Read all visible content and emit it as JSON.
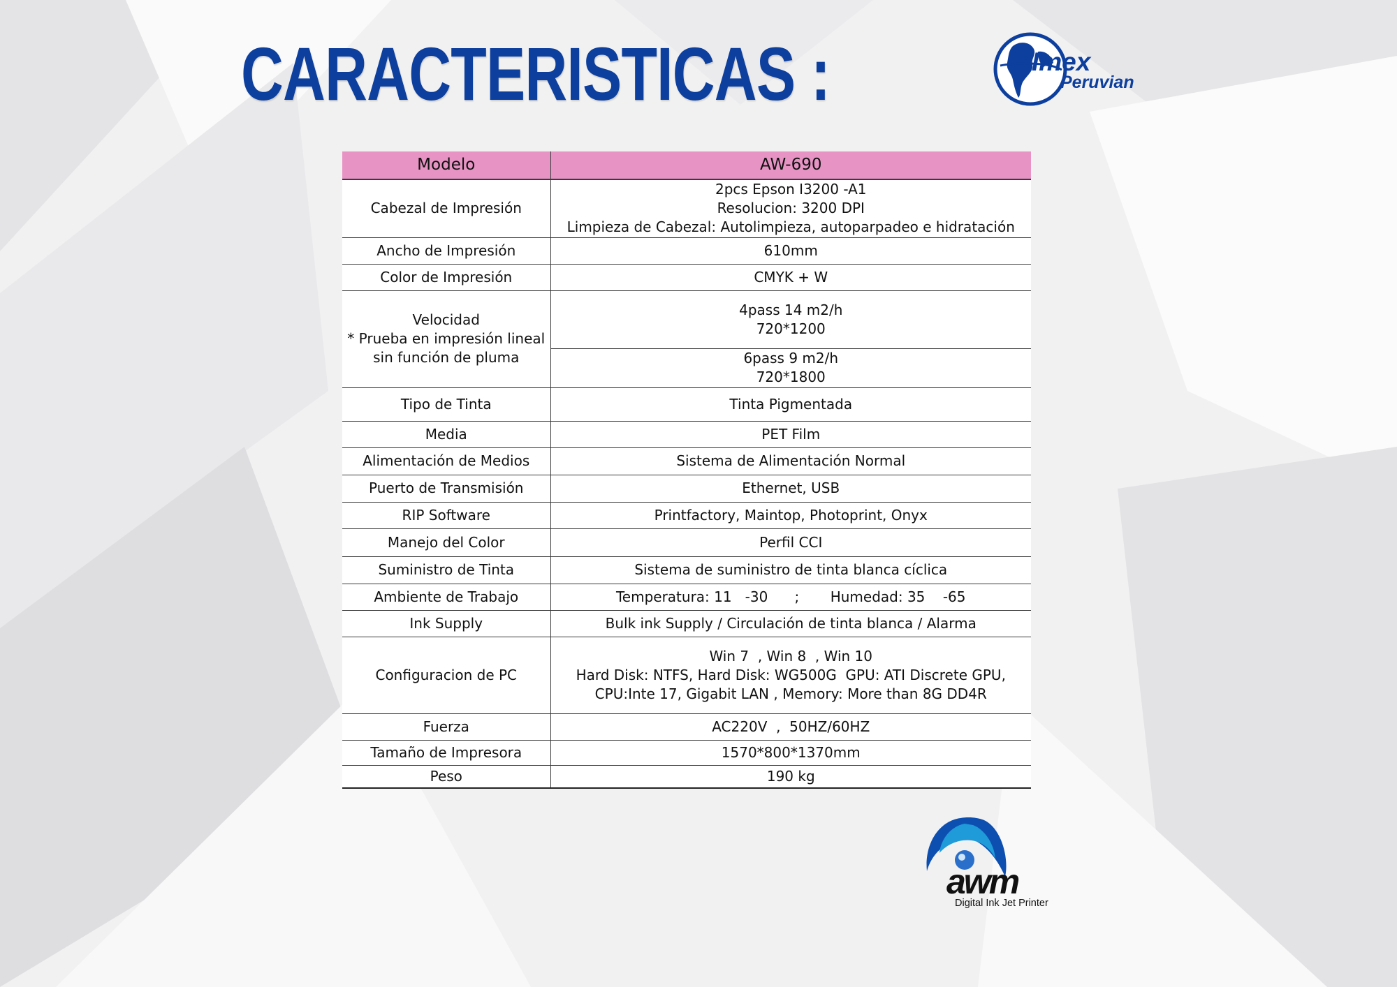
{
  "header": {
    "title": "CARACTERISTICAS :"
  },
  "brand": {
    "imex_line1": "Imex",
    "imex_line2": "Peruvian",
    "awm_tagline": "Digital Ink Jet Printer",
    "logo_color": "#0d3f9e",
    "logo_accent": "#1e9bd8"
  },
  "table": {
    "header_color": "#e794c4",
    "col_label": "Modelo",
    "col_value": "AW-690",
    "rows": {
      "cabezal": {
        "label": "Cabezal de Impresión",
        "lines": [
          "2pcs Epson I3200 -A1",
          "Resolucion: 3200 DPI",
          "Limpieza de Cabezal: Autolimpieza, autoparpadeo e hidratación"
        ]
      },
      "ancho": {
        "label": "Ancho de Impresión",
        "value": "610mm"
      },
      "color": {
        "label": "Color de Impresión",
        "value": "CMYK + W"
      },
      "velocidad": {
        "label_lines": [
          "Velocidad",
          "* Prueba en impresión lineal",
          "sin función de pluma"
        ],
        "values": [
          [
            "4pass 14 m2/h",
            "720*1200"
          ],
          [
            "6pass 9 m2/h",
            "720*1800"
          ]
        ]
      },
      "tinta": {
        "label": "Tipo de Tinta",
        "value": "Tinta Pigmentada"
      },
      "media": {
        "label": "Media",
        "value": "PET Film"
      },
      "alimentacion": {
        "label": "Alimentación de Medios",
        "value": "Sistema de Alimentación Normal"
      },
      "puerto": {
        "label": "Puerto de Transmisión",
        "value": "Ethernet, USB"
      },
      "rip": {
        "label": "RIP Software",
        "value": "Printfactory, Maintop, Photoprint, Onyx"
      },
      "manejo": {
        "label": "Manejo del Color",
        "value": "Perfil CCI"
      },
      "suministro": {
        "label": "Suministro de Tinta",
        "value": "Sistema de suministro de tinta blanca cíclica"
      },
      "ambiente": {
        "label": "Ambiente de Trabajo",
        "value": "Temperatura: 11   -30      ;       Humedad: 35    -65"
      },
      "ink": {
        "label": "Ink Supply",
        "value": "Bulk ink Supply / Circulación de tinta blanca / Alarma"
      },
      "pc": {
        "label": "Configuracion de PC",
        "lines": [
          "Win 7  , Win 8  , Win 10",
          "Hard Disk: NTFS, Hard Disk: WG500G  GPU: ATI Discrete GPU,",
          "CPU:Inte 17, Gigabit LAN , Memory: More than 8G DD4R"
        ]
      },
      "fuerza": {
        "label": "Fuerza",
        "value": "AC220V  ,  50HZ/60HZ"
      },
      "tamano": {
        "label": "Tamaño de Impresora",
        "value": "1570*800*1370mm"
      },
      "peso": {
        "label": "Peso",
        "value": "190 kg"
      }
    }
  }
}
